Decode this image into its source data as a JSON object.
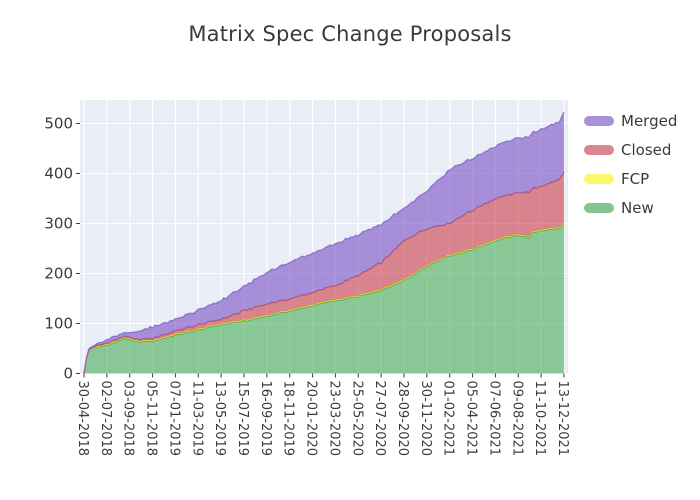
{
  "title": "Matrix Spec Change Proposals",
  "colors": {
    "page_bg": "#ffffff",
    "plot_bg": "#e9edf5",
    "grid": "#ffffff",
    "tick_label": "#3b3b3b",
    "title": "#3a3a3a"
  },
  "legend": {
    "items": [
      {
        "label": "Merged",
        "swatch": "#a992d9"
      },
      {
        "label": "Closed",
        "swatch": "#d9868f"
      },
      {
        "label": "FCP",
        "swatch": "#f9f86b"
      },
      {
        "label": "New",
        "swatch": "#85c493"
      }
    ]
  },
  "axes": {
    "y_tick_labels": [
      "0",
      "100",
      "200",
      "300",
      "400",
      "500"
    ],
    "y_tick_values": [
      0,
      100,
      200,
      300,
      400,
      500
    ],
    "x_tick_labels": [
      "30-04-2018",
      "02-07-2018",
      "03-09-2018",
      "05-11-2018",
      "07-01-2019",
      "11-03-2019",
      "13-05-2019",
      "15-07-2019",
      "16-09-2019",
      "18-11-2019",
      "20-01-2020",
      "23-03-2020",
      "25-05-2020",
      "27-07-2020",
      "28-09-2020",
      "30-11-2020",
      "01-02-2021",
      "05-04-2021",
      "07-06-2021",
      "09-08-2021",
      "11-10-2021",
      "13-12-2021"
    ]
  },
  "chart_data": {
    "type": "area",
    "stacked": true,
    "title": "Matrix Spec Change Proposals",
    "grid": true,
    "legend_position": "outside upper right",
    "ylim": [
      0,
      547
    ],
    "x_start": "2018-04-30",
    "x_end": "2021-12-13",
    "x_tick_interval_days": 63,
    "stack_order_bottom_to_top": [
      "New",
      "FCP",
      "Closed",
      "Merged"
    ],
    "series_styles": {
      "New": {
        "fill": "#4aaf57",
        "edge": "#3f9e4d"
      },
      "FCP": {
        "fill": "#fffe02",
        "edge": "#e6e33c"
      },
      "Closed": {
        "fill": "#cd3e49",
        "edge": "#c0545e"
      },
      "Merged": {
        "fill": "#7a50c5",
        "edge": "#8a68c9"
      }
    },
    "fill_opacity": 0.6,
    "samples": [
      {
        "date": "2018-04-30",
        "new": 0,
        "fcp": 0,
        "closed": 0,
        "merged": 0
      },
      {
        "date": "2018-05-07",
        "new": 30,
        "fcp": 0,
        "closed": 1,
        "merged": 1
      },
      {
        "date": "2018-05-14",
        "new": 46,
        "fcp": 1,
        "closed": 1,
        "merged": 2
      },
      {
        "date": "2018-05-28",
        "new": 52,
        "fcp": 1,
        "closed": 1,
        "merged": 3
      },
      {
        "date": "2018-06-11",
        "new": 53,
        "fcp": 1,
        "closed": 2,
        "merged": 4
      },
      {
        "date": "2018-07-02",
        "new": 57,
        "fcp": 2,
        "closed": 2,
        "merged": 7
      },
      {
        "date": "2018-08-06",
        "new": 66,
        "fcp": 2,
        "closed": 2,
        "merged": 8
      },
      {
        "date": "2018-08-20",
        "new": 71,
        "fcp": 2,
        "closed": 2,
        "merged": 8
      },
      {
        "date": "2018-09-03",
        "new": 68,
        "fcp": 2,
        "closed": 2,
        "merged": 9
      },
      {
        "date": "2018-09-17",
        "new": 63,
        "fcp": 2,
        "closed": 3,
        "merged": 13
      },
      {
        "date": "2018-11-05",
        "new": 65,
        "fcp": 2,
        "closed": 3,
        "merged": 23
      },
      {
        "date": "2019-01-07",
        "new": 77,
        "fcp": 2,
        "closed": 6,
        "merged": 23
      },
      {
        "date": "2019-03-11",
        "new": 87,
        "fcp": 2,
        "closed": 9,
        "merged": 29
      },
      {
        "date": "2019-05-13",
        "new": 98,
        "fcp": 2,
        "closed": 8,
        "merged": 38
      },
      {
        "date": "2019-07-15",
        "new": 105,
        "fcp": 2,
        "closed": 18,
        "merged": 48
      },
      {
        "date": "2019-09-16",
        "new": 115,
        "fcp": 2,
        "closed": 22,
        "merged": 63
      },
      {
        "date": "2019-11-18",
        "new": 125,
        "fcp": 2,
        "closed": 22,
        "merged": 74
      },
      {
        "date": "2020-01-20",
        "new": 136,
        "fcp": 2,
        "closed": 24,
        "merged": 78
      },
      {
        "date": "2020-03-23",
        "new": 146,
        "fcp": 2,
        "closed": 28,
        "merged": 84
      },
      {
        "date": "2020-05-25",
        "new": 154,
        "fcp": 2,
        "closed": 40,
        "merged": 81
      },
      {
        "date": "2020-07-27",
        "new": 166,
        "fcp": 2,
        "closed": 54,
        "merged": 76
      },
      {
        "date": "2020-09-28",
        "new": 186,
        "fcp": 2,
        "closed": 77,
        "merged": 65
      },
      {
        "date": "2020-11-30",
        "new": 215,
        "fcp": 2,
        "closed": 73,
        "merged": 75
      },
      {
        "date": "2021-02-01",
        "new": 236,
        "fcp": 2,
        "closed": 62,
        "merged": 108
      },
      {
        "date": "2021-04-05",
        "new": 248,
        "fcp": 2,
        "closed": 77,
        "merged": 103
      },
      {
        "date": "2021-06-07",
        "new": 266,
        "fcp": 2,
        "closed": 82,
        "merged": 105
      },
      {
        "date": "2021-08-09",
        "new": 277,
        "fcp": 2,
        "closed": 83,
        "merged": 109
      },
      {
        "date": "2021-09-06",
        "new": 272,
        "fcp": 2,
        "closed": 88,
        "merged": 110
      },
      {
        "date": "2021-09-20",
        "new": 282,
        "fcp": 2,
        "closed": 86,
        "merged": 111
      },
      {
        "date": "2021-10-11",
        "new": 286,
        "fcp": 2,
        "closed": 87,
        "merged": 114
      },
      {
        "date": "2021-11-29",
        "new": 290,
        "fcp": 2,
        "closed": 95,
        "merged": 115
      },
      {
        "date": "2021-12-13",
        "new": 296,
        "fcp": 2,
        "closed": 105,
        "merged": 120
      }
    ]
  }
}
